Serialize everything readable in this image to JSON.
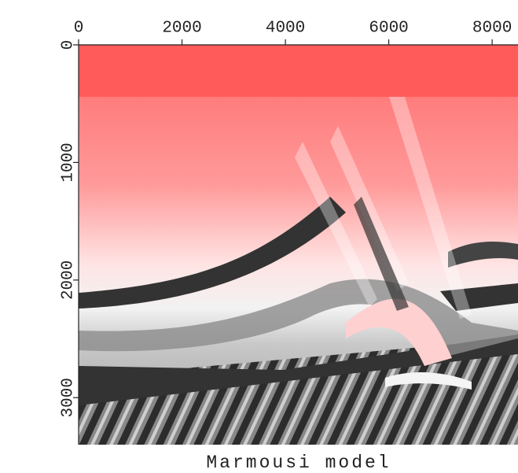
{
  "chart_data": {
    "type": "image",
    "title": "Marmousi model",
    "xlim": [
      0,
      8500
    ],
    "xticks": [
      0,
      2000,
      4000,
      6000,
      8000
    ],
    "ylim": [
      0,
      3400
    ],
    "yticks": [
      0,
      1000,
      2000,
      3000
    ]
  }
}
